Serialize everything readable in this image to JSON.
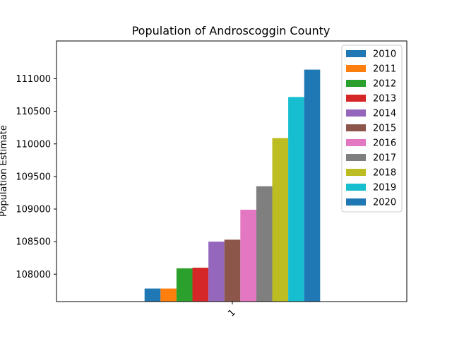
{
  "chart_data": {
    "type": "bar",
    "title": "Population of Androscoggin County",
    "xlabel": "",
    "ylabel": "Population Estimate",
    "categories": [
      "1"
    ],
    "ylim": [
      107580,
      111580
    ],
    "yticks": [
      108000,
      108500,
      109000,
      109500,
      110000,
      110500,
      111000
    ],
    "grid": false,
    "legend_position": "top-right",
    "series": [
      {
        "name": "2010",
        "values": [
          107780
        ],
        "color": "#1f77b4"
      },
      {
        "name": "2011",
        "values": [
          107780
        ],
        "color": "#ff7f0e"
      },
      {
        "name": "2012",
        "values": [
          108090
        ],
        "color": "#2ca02c"
      },
      {
        "name": "2013",
        "values": [
          108100
        ],
        "color": "#d62728"
      },
      {
        "name": "2014",
        "values": [
          108500
        ],
        "color": "#9467bd"
      },
      {
        "name": "2015",
        "values": [
          108530
        ],
        "color": "#8c564b"
      },
      {
        "name": "2016",
        "values": [
          108990
        ],
        "color": "#e377c2"
      },
      {
        "name": "2017",
        "values": [
          109350
        ],
        "color": "#7f7f7f"
      },
      {
        "name": "2018",
        "values": [
          110090
        ],
        "color": "#bcbd22"
      },
      {
        "name": "2019",
        "values": [
          110720
        ],
        "color": "#17becf"
      },
      {
        "name": "2020",
        "values": [
          111140
        ],
        "color": "#1f77b4"
      }
    ]
  }
}
